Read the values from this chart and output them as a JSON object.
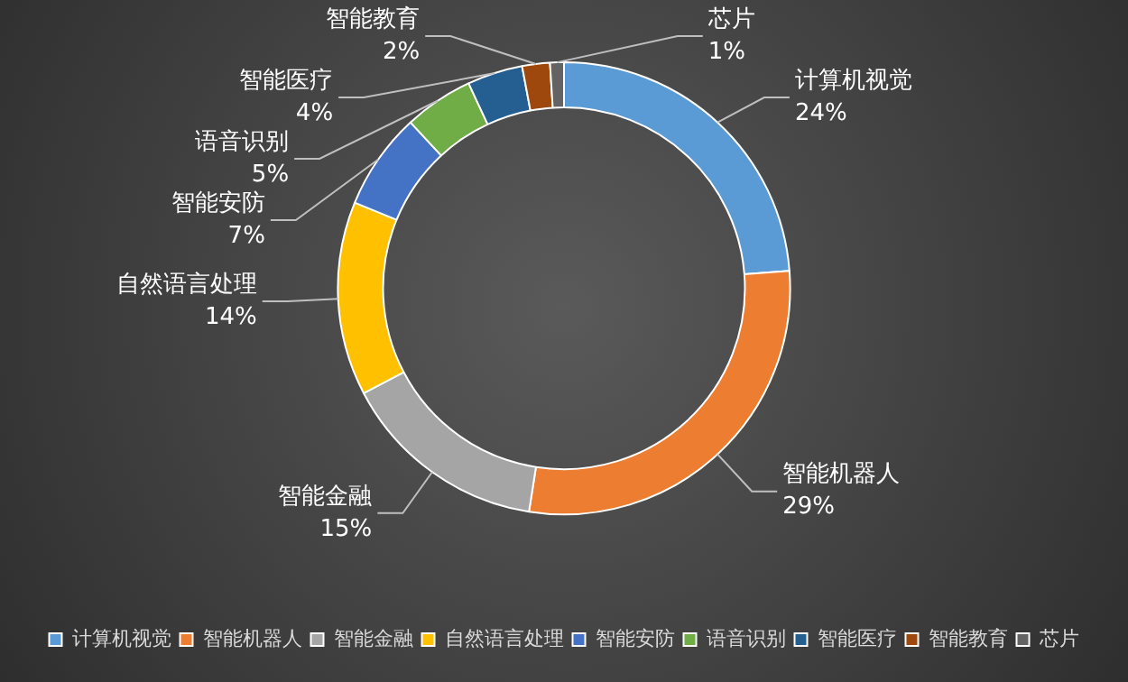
{
  "chart_data": {
    "type": "donut",
    "categories": [
      "计算机视觉",
      "智能机器人",
      "智能金融",
      "自然语言处理",
      "智能安防",
      "语音识别",
      "智能医疗",
      "智能教育",
      "芯片"
    ],
    "values": [
      24,
      29,
      15,
      14,
      7,
      5,
      4,
      2,
      1
    ],
    "value_labels": [
      "24%",
      "29%",
      "15%",
      "14%",
      "7%",
      "5%",
      "4%",
      "2%",
      "1%"
    ],
    "colors": [
      "#5b9bd5",
      "#ed7d31",
      "#a5a5a5",
      "#ffc000",
      "#4472c4",
      "#70ad47",
      "#255e91",
      "#9e480e",
      "#636363"
    ],
    "legend": "bottom"
  }
}
